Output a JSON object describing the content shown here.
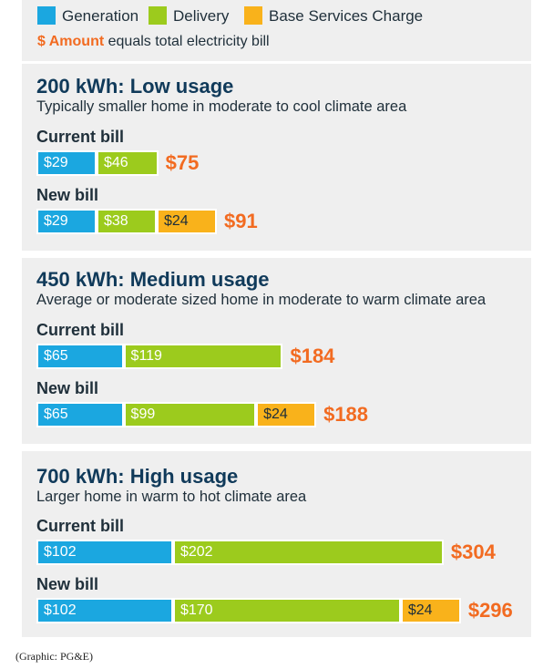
{
  "legend": {
    "generation": "Generation",
    "delivery": "Delivery",
    "base": "Base Services Charge",
    "note_amount": "$ Amount",
    "note_rest": " equals total electricity bill"
  },
  "colors": {
    "generation": "#1ba7e0",
    "delivery": "#9ccb1d",
    "base": "#f9b21b",
    "total": "#f26b21",
    "panel": "#efefef"
  },
  "chart_data": {
    "type": "bar",
    "orientation": "horizontal-stacked",
    "series": [
      {
        "name": "Generation"
      },
      {
        "name": "Delivery"
      },
      {
        "name": "Base Services Charge"
      }
    ],
    "sections": [
      {
        "title": "200 kWh: Low usage",
        "subtitle": "Typically smaller home in moderate to cool climate area",
        "bills": [
          {
            "label": "Current bill",
            "values": [
              29,
              46,
              0
            ],
            "labels": [
              "$29",
              "$46",
              ""
            ],
            "total": "$75"
          },
          {
            "label": "New bill",
            "values": [
              29,
              38,
              24
            ],
            "labels": [
              "$29",
              "$38",
              "$24"
            ],
            "total": "$91"
          }
        ]
      },
      {
        "title": "450 kWh: Medium usage",
        "subtitle": "Average or moderate sized home in moderate to warm climate area",
        "bills": [
          {
            "label": "Current bill",
            "values": [
              65,
              119,
              0
            ],
            "labels": [
              "$65",
              "$119",
              ""
            ],
            "total": "$184"
          },
          {
            "label": "New bill",
            "values": [
              65,
              99,
              24
            ],
            "labels": [
              "$65",
              "$99",
              "$24"
            ],
            "total": "$188"
          }
        ]
      },
      {
        "title": "700 kWh: High usage",
        "subtitle": "Larger home in warm to hot climate area",
        "bills": [
          {
            "label": "Current bill",
            "values": [
              102,
              202,
              0
            ],
            "labels": [
              "$102",
              "$202",
              ""
            ],
            "total": "$304"
          },
          {
            "label": "New bill",
            "values": [
              102,
              170,
              24
            ],
            "labels": [
              "$102",
              "$170",
              "$24"
            ],
            "total": "$296"
          }
        ]
      }
    ]
  },
  "credit": "(Graphic: PG&E)"
}
